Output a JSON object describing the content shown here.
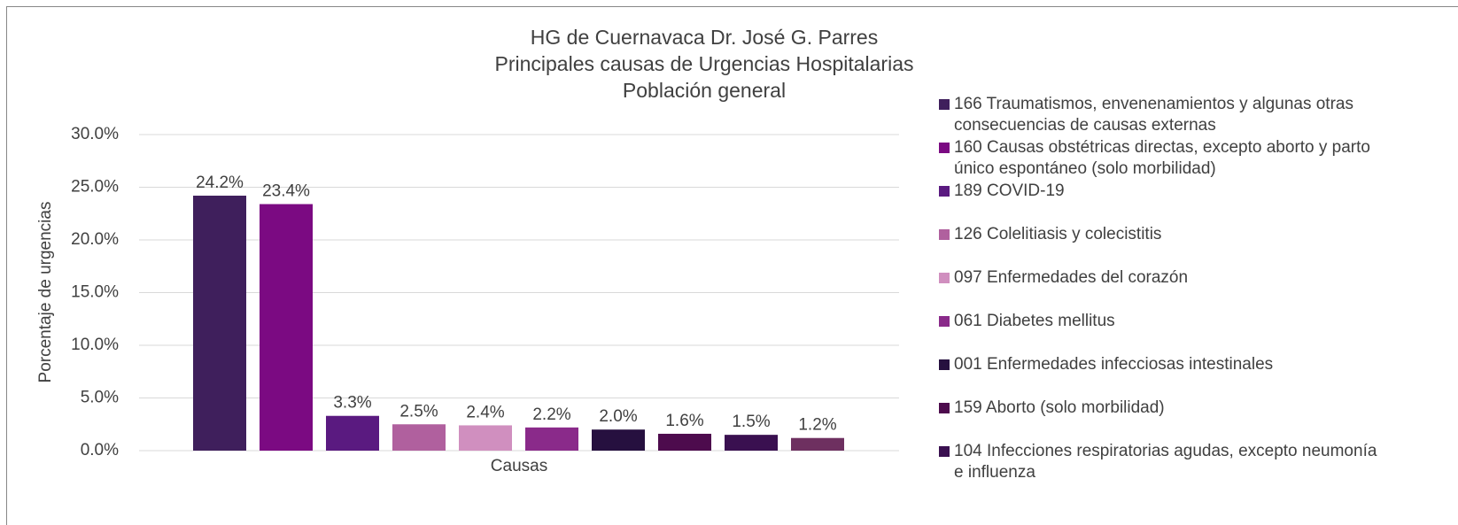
{
  "chart_data": {
    "type": "bar",
    "title": [
      "HG de Cuernavaca Dr. José G. Parres",
      "Principales causas de Urgencias Hospitalarias",
      "Población general"
    ],
    "xlabel": "Causas",
    "ylabel": "Porcentaje de urgencias",
    "ylim": [
      0,
      30
    ],
    "yticks": [
      {
        "value": 0,
        "label": "0.0%"
      },
      {
        "value": 5,
        "label": "5.0%"
      },
      {
        "value": 10,
        "label": "10.0%"
      },
      {
        "value": 15,
        "label": "15.0%"
      },
      {
        "value": 20,
        "label": "20.0%"
      },
      {
        "value": 25,
        "label": "25.0%"
      },
      {
        "value": 30,
        "label": "30.0%"
      }
    ],
    "grid": true,
    "legend": "right",
    "series": [
      {
        "name": "166 Traumatismos, envenenamientos y algunas otras consecuencias de causas externas",
        "color": "#3f1f5c",
        "values": [
          24.2
        ],
        "value_labels": [
          "24.2%"
        ]
      },
      {
        "name": "160 Causas obstétricas directas, excepto aborto y parto único espontáneo (solo morbilidad)",
        "color": "#7b0a82",
        "values": [
          23.4
        ],
        "value_labels": [
          "23.4%"
        ]
      },
      {
        "name": "189 COVID-19",
        "color": "#5a1a80",
        "values": [
          3.3
        ],
        "value_labels": [
          "3.3%"
        ]
      },
      {
        "name": "126 Colelitiasis y colecistitis",
        "color": "#b0609e",
        "values": [
          2.5
        ],
        "value_labels": [
          "2.5%"
        ]
      },
      {
        "name": "097 Enfermedades del corazón",
        "color": "#d08fbf",
        "values": [
          2.4
        ],
        "value_labels": [
          "2.4%"
        ]
      },
      {
        "name": "061 Diabetes mellitus",
        "color": "#8a2a8a",
        "values": [
          2.2
        ],
        "value_labels": [
          "2.2%"
        ]
      },
      {
        "name": "001 Enfermedades infecciosas intestinales",
        "color": "#26103f",
        "values": [
          2.0
        ],
        "value_labels": [
          "2.0%"
        ]
      },
      {
        "name": "159 Aborto (solo morbilidad)",
        "color": "#4d0b4d",
        "values": [
          1.6
        ],
        "value_labels": [
          "1.6%"
        ]
      },
      {
        "name": "104 Infecciones respiratorias agudas, excepto neumonía e influenza",
        "color": "#3a1050",
        "values": [
          1.5
        ],
        "value_labels": [
          "1.5%"
        ]
      },
      {
        "name": null,
        "color": "#6e3060",
        "values": [
          1.2
        ],
        "value_labels": [
          "1.2%"
        ]
      }
    ]
  }
}
